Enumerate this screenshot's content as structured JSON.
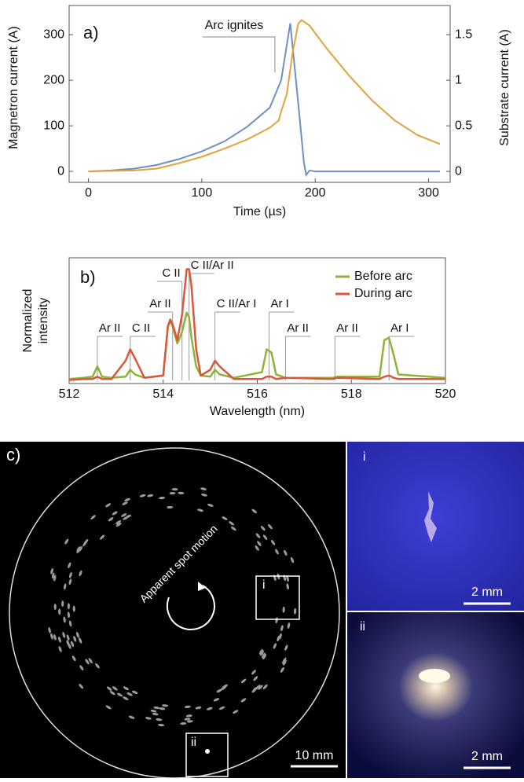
{
  "chart_data": [
    {
      "type": "line",
      "label": "a)",
      "xlabel": "Time (µs)",
      "ylabel": "Magnetron current (A)",
      "y2label": "Substrate current (A)",
      "xlim": [
        -17,
        319
      ],
      "xticks": [
        0,
        100,
        200,
        300
      ],
      "ylim": [
        -24,
        364
      ],
      "yticks": [
        0,
        100,
        200,
        300
      ],
      "y2lim": [
        -0.12,
        1.82
      ],
      "y2ticks": [
        0,
        0.5,
        1,
        1.5
      ],
      "annotation": {
        "text": "Arc ignites",
        "x": 170,
        "y": 200
      },
      "series": [
        {
          "color": "#6f8fc4",
          "axis": "y",
          "x": [
            0,
            20,
            40,
            60,
            80,
            100,
            120,
            140,
            160,
            170,
            178,
            185,
            190,
            192,
            195,
            200,
            250,
            310
          ],
          "values": [
            0,
            2,
            6,
            14,
            27,
            44,
            66,
            98,
            140,
            200,
            325,
            150,
            20,
            -8,
            2,
            0,
            0,
            0
          ]
        },
        {
          "color": "#e0a43a",
          "axis": "y2",
          "x": [
            0,
            40,
            60,
            70,
            80,
            100,
            120,
            140,
            160,
            168,
            169,
            175,
            180,
            185,
            188,
            195,
            210,
            230,
            250,
            270,
            290,
            310
          ],
          "values": [
            0,
            0.01,
            0.03,
            0.06,
            0.09,
            0.16,
            0.25,
            0.35,
            0.48,
            0.56,
            0.62,
            0.85,
            1.3,
            1.62,
            1.66,
            1.6,
            1.35,
            1.05,
            0.78,
            0.56,
            0.4,
            0.3
          ]
        }
      ]
    },
    {
      "type": "line",
      "label": "b)",
      "xlabel": "Wavelength (nm)",
      "ylabel": [
        "Normalized",
        "intensity"
      ],
      "xlim": [
        512,
        520
      ],
      "xticks": [
        512,
        514,
        516,
        518,
        520
      ],
      "ylim": [
        0,
        1.1
      ],
      "legend": "upper right",
      "x": [
        512,
        512.3,
        512.5,
        512.6,
        512.7,
        512.9,
        513.2,
        513.3,
        513.4,
        513.6,
        514.0,
        514.1,
        514.15,
        514.2,
        514.3,
        514.4,
        514.5,
        514.55,
        514.6,
        514.7,
        514.8,
        515.0,
        515.1,
        515.2,
        515.5,
        516.1,
        516.2,
        516.3,
        516.4,
        516.6,
        517.6,
        517.7,
        518.6,
        518.7,
        518.8,
        518.9,
        519.0,
        520
      ],
      "series": [
        {
          "name": "Before arc",
          "color": "#8db33a",
          "values": [
            0.04,
            0.05,
            0.06,
            0.15,
            0.06,
            0.05,
            0.06,
            0.12,
            0.08,
            0.05,
            0.07,
            0.5,
            0.55,
            0.5,
            0.35,
            0.45,
            0.62,
            0.58,
            0.4,
            0.15,
            0.07,
            0.06,
            0.12,
            0.08,
            0.05,
            0.1,
            0.3,
            0.27,
            0.08,
            0.05,
            0.05,
            0.06,
            0.06,
            0.38,
            0.4,
            0.25,
            0.08,
            0.05
          ]
        },
        {
          "name": "During arc",
          "color": "#d9573a",
          "values": [
            0.03,
            0.04,
            0.04,
            0.06,
            0.04,
            0.04,
            0.2,
            0.3,
            0.22,
            0.05,
            0.07,
            0.5,
            0.56,
            0.52,
            0.38,
            0.6,
            1.0,
            1.0,
            0.85,
            0.3,
            0.07,
            0.12,
            0.2,
            0.15,
            0.04,
            0.04,
            0.06,
            0.06,
            0.04,
            0.05,
            0.04,
            0.05,
            0.04,
            0.06,
            0.07,
            0.05,
            0.04,
            0.04
          ]
        }
      ],
      "annotations": [
        {
          "text": "Ar II",
          "x": 512.6
        },
        {
          "text": "C II",
          "x": 513.3
        },
        {
          "text": "Ar II",
          "x": 514.2
        },
        {
          "text": "C II",
          "x": 514.4
        },
        {
          "text": "C II/Ar II",
          "x": 514.55
        },
        {
          "text": "C II/Ar I",
          "x": 515.1
        },
        {
          "text": "Ar I",
          "x": 516.25
        },
        {
          "text": "Ar II",
          "x": 516.6
        },
        {
          "text": "Ar II",
          "x": 517.65
        },
        {
          "text": "Ar I",
          "x": 518.8
        }
      ]
    }
  ],
  "photo_panel": {
    "label": "c)",
    "motion_label": "Apparent spot motion",
    "inset_i": "i",
    "inset_ii": "ii",
    "scale_main": "10 mm",
    "scale_i": "2 mm",
    "scale_ii": "2 mm"
  }
}
